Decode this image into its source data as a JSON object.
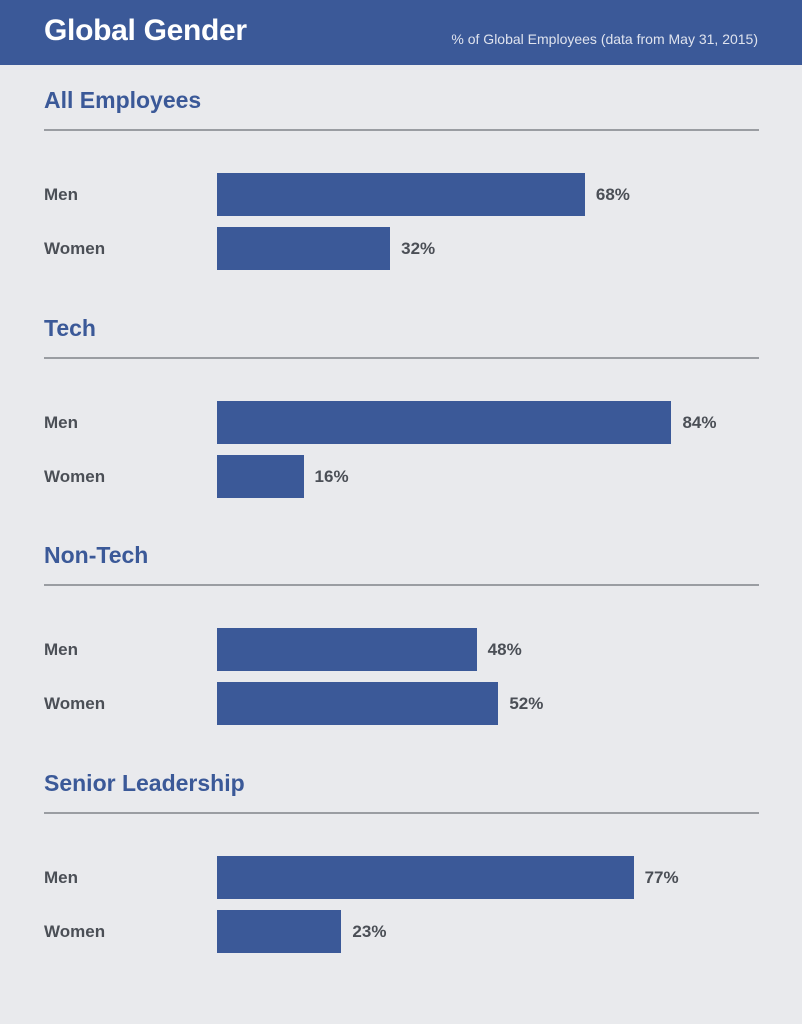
{
  "header": {
    "title": "Global Gender",
    "subtitle": "% of Global Employees (data from May 31, 2015)"
  },
  "colors": {
    "accent": "#3b5998",
    "background": "#e9eaed",
    "text": "#4b4f56"
  },
  "chart_data": {
    "type": "bar",
    "orientation": "horizontal",
    "title": "Global Gender",
    "subtitle": "% of Global Employees (data from May 31, 2015)",
    "xlim": [
      0,
      100
    ],
    "unit": "%",
    "groups": [
      {
        "name": "All Employees",
        "categories": [
          "Men",
          "Women"
        ],
        "values": [
          68,
          32
        ]
      },
      {
        "name": "Tech",
        "categories": [
          "Men",
          "Women"
        ],
        "values": [
          84,
          16
        ]
      },
      {
        "name": "Non-Tech",
        "categories": [
          "Men",
          "Women"
        ],
        "values": [
          48,
          52
        ]
      },
      {
        "name": "Senior Leadership",
        "categories": [
          "Men",
          "Women"
        ],
        "values": [
          77,
          23
        ]
      }
    ]
  }
}
